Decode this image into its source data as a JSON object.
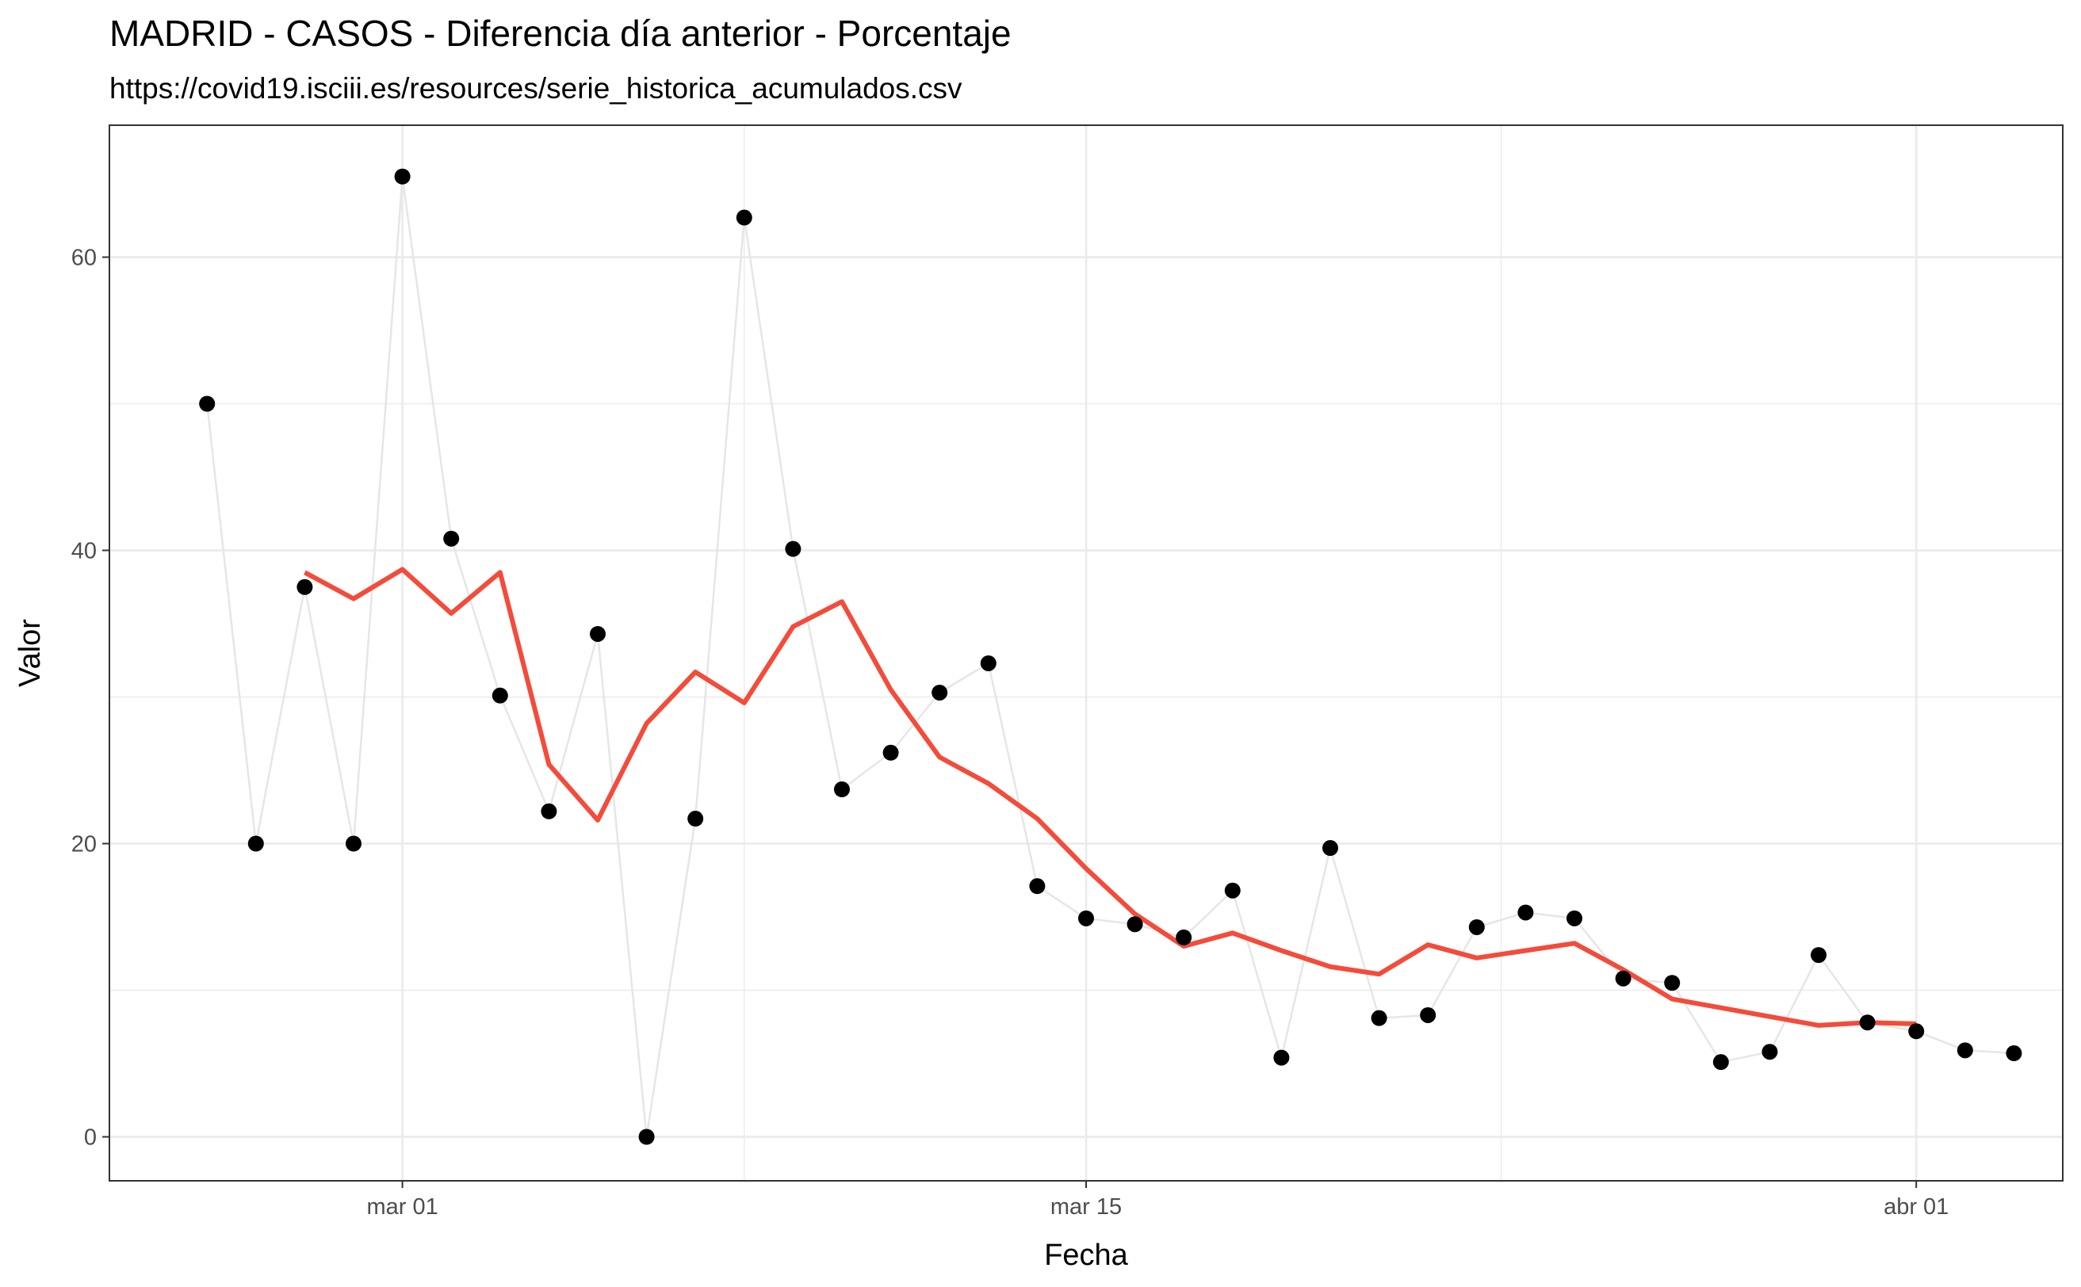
{
  "chart_data": {
    "type": "line",
    "title": "MADRID - CASOS - Diferencia día anterior - Porcentaje",
    "subtitle": "https://covid19.isciii.es/resources/serie_historica_acumulados.csv",
    "xlabel": "Fecha",
    "ylabel": "Valor",
    "x_type": "date",
    "xlim": [
      "2020-02-24",
      "2020-04-04"
    ],
    "ylim": [
      -3,
      69
    ],
    "x_ticks": [
      {
        "date": "2020-03-01",
        "label": "mar 01"
      },
      {
        "date": "2020-03-15",
        "label": "mar 15"
      },
      {
        "date": "2020-04-01",
        "label": "abr 01"
      }
    ],
    "y_ticks": [
      0,
      20,
      40,
      60
    ],
    "grid": true,
    "legend": "none",
    "colors": {
      "raw_line": "#e6e6e6",
      "points": "#000000",
      "smooth_line": "#f44b3a",
      "grid": "#ebebeb",
      "panel_border": "#333333"
    },
    "series": [
      {
        "kind": "line+points",
        "x": [
          "2020-02-26",
          "2020-02-27",
          "2020-02-28",
          "2020-02-29",
          "2020-03-01",
          "2020-03-02",
          "2020-03-03",
          "2020-03-04",
          "2020-03-05",
          "2020-03-06",
          "2020-03-07",
          "2020-03-08",
          "2020-03-09",
          "2020-03-10",
          "2020-03-11",
          "2020-03-12",
          "2020-03-13",
          "2020-03-14",
          "2020-03-15",
          "2020-03-16",
          "2020-03-17",
          "2020-03-18",
          "2020-03-19",
          "2020-03-20",
          "2020-03-21",
          "2020-03-22",
          "2020-03-23",
          "2020-03-24",
          "2020-03-25",
          "2020-03-26",
          "2020-03-27",
          "2020-03-28",
          "2020-03-29",
          "2020-03-30",
          "2020-03-31",
          "2020-04-01",
          "2020-04-02",
          "2020-04-03"
        ],
        "values": [
          50.0,
          20.0,
          37.5,
          20.0,
          65.5,
          40.8,
          30.1,
          22.2,
          34.3,
          0.0,
          21.7,
          62.7,
          40.1,
          23.7,
          26.2,
          30.3,
          32.3,
          17.1,
          14.9,
          14.5,
          13.6,
          16.8,
          5.4,
          19.7,
          8.1,
          8.3,
          14.3,
          15.3,
          14.9,
          10.8,
          10.5,
          5.1,
          5.8,
          12.4,
          7.8,
          7.2,
          5.9,
          5.7
        ]
      },
      {
        "kind": "smooth",
        "x": [
          "2020-02-28",
          "2020-02-29",
          "2020-03-01",
          "2020-03-02",
          "2020-03-03",
          "2020-03-04",
          "2020-03-05",
          "2020-03-06",
          "2020-03-07",
          "2020-03-08",
          "2020-03-09",
          "2020-03-10",
          "2020-03-11",
          "2020-03-12",
          "2020-03-13",
          "2020-03-14",
          "2020-03-15",
          "2020-03-16",
          "2020-03-17",
          "2020-03-18",
          "2020-03-19",
          "2020-03-20",
          "2020-03-21",
          "2020-03-22",
          "2020-03-23",
          "2020-03-24",
          "2020-03-25",
          "2020-03-26",
          "2020-03-27",
          "2020-03-28",
          "2020-03-29",
          "2020-03-30",
          "2020-03-31",
          "2020-04-01"
        ],
        "values": [
          38.5,
          36.7,
          38.7,
          35.7,
          38.5,
          25.4,
          21.6,
          28.2,
          31.7,
          29.6,
          34.8,
          36.5,
          30.5,
          25.9,
          24.1,
          21.7,
          18.3,
          15.2,
          13.0,
          13.9,
          12.7,
          11.6,
          11.1,
          13.1,
          12.2,
          12.7,
          13.2,
          11.4,
          9.4,
          8.8,
          8.2,
          7.6,
          7.8,
          7.7
        ]
      }
    ]
  }
}
